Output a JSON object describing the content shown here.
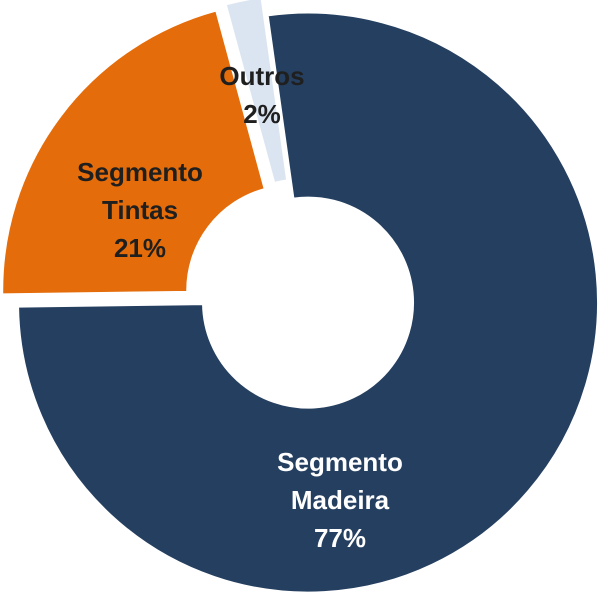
{
  "chart_data": {
    "type": "donut",
    "categories": [
      "Segmento Madeira",
      "Segmento Tintas",
      "Outros"
    ],
    "values": [
      77,
      21,
      2
    ],
    "value_labels": [
      "77%",
      "21%",
      "2%"
    ],
    "colors": [
      "#253f60",
      "#e46c0a",
      "#dbe5f1"
    ],
    "label_colors": [
      "#ffffff",
      "#1f1f1f",
      "#1f1f1f"
    ]
  }
}
